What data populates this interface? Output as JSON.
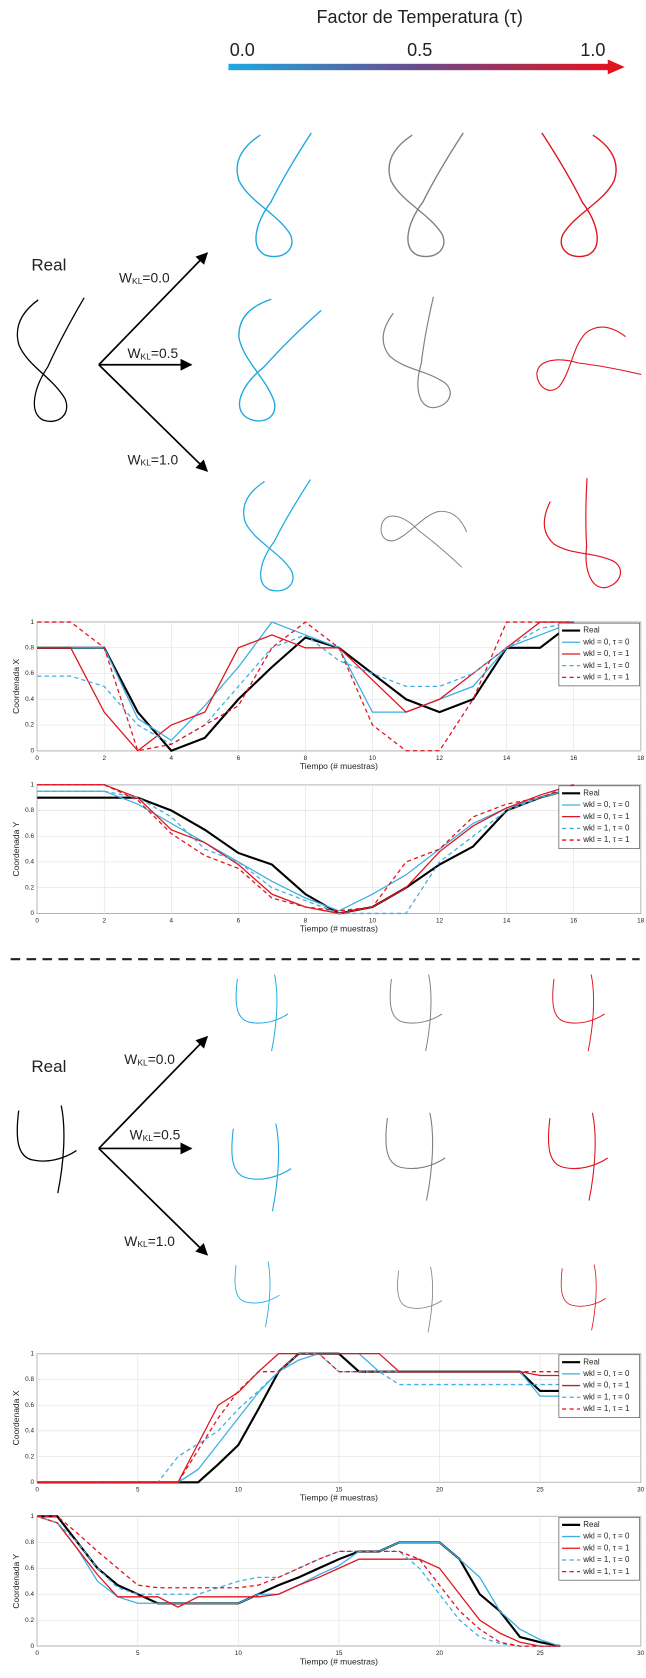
{
  "header": {
    "title": "Factor de Temperatura (τ)",
    "scale_labels": [
      "0.0",
      "0.5",
      "1.0"
    ]
  },
  "panels": [
    {
      "real_label": "Real",
      "weights": [
        {
          "symbol": "W",
          "subscript": "KL",
          "text": "=0.0"
        },
        {
          "symbol": "W",
          "subscript": "KL",
          "text": "=0.5"
        },
        {
          "symbol": "W",
          "subscript": "KL",
          "text": "=1.0"
        }
      ]
    },
    {
      "real_label": "Real",
      "weights": [
        {
          "symbol": "W",
          "subscript": "KL",
          "text": "=0.0"
        },
        {
          "symbol": "W",
          "subscript": "KL",
          "text": "=0.5"
        },
        {
          "symbol": "W",
          "subscript": "KL",
          "text": "=1.0"
        }
      ]
    }
  ],
  "chart_data": [
    {
      "type": "line",
      "xlabel": "Tiempo (# muestras)",
      "ylabel": "Coordenada X",
      "grid": true,
      "legend": "upper right",
      "xlim": [
        0,
        18
      ],
      "xticks": [
        0,
        2,
        4,
        6,
        8,
        10,
        12,
        14,
        16,
        18
      ],
      "ylim": [
        0,
        1
      ],
      "yticks": [
        0,
        0.2,
        0.4,
        0.6,
        0.8,
        1
      ],
      "x": [
        0,
        1,
        2,
        3,
        4,
        5,
        6,
        7,
        8,
        9,
        10,
        11,
        12,
        13,
        14,
        15,
        16
      ],
      "series": [
        {
          "name": "Real",
          "color": "#000000",
          "dashed": false,
          "linewidth": 2,
          "values": [
            0.8,
            0.8,
            0.8,
            0.3,
            0,
            0.1,
            0.4,
            0.65,
            0.88,
            0.8,
            0.6,
            0.4,
            0.3,
            0.4,
            0.8,
            0.8,
            1
          ]
        },
        {
          "name": "wkl = 0, τ = 0",
          "color": "#3fb0e0",
          "dashed": false,
          "linewidth": 1.2,
          "values": [
            0.8,
            0.8,
            0.8,
            0.25,
            0.08,
            0.35,
            0.65,
            1,
            0.9,
            0.8,
            0.3,
            0.3,
            0.4,
            0.5,
            0.8,
            0.9,
            1
          ]
        },
        {
          "name": "wkl = 0, τ = 1",
          "color": "#e0141e",
          "dashed": false,
          "linewidth": 1.2,
          "values": [
            0.8,
            0.8,
            0.3,
            0,
            0.2,
            0.3,
            0.8,
            0.9,
            0.8,
            0.8,
            0.55,
            0.3,
            0.4,
            0.6,
            0.8,
            1,
            1
          ]
        },
        {
          "name": "wkl = 1, τ = 0",
          "color": "#3fb0e0",
          "dashed": true,
          "linewidth": 1.2,
          "values": [
            0.58,
            0.58,
            0.5,
            0.2,
            0.05,
            0.2,
            0.5,
            0.8,
            0.9,
            0.7,
            0.6,
            0.5,
            0.5,
            0.6,
            0.8,
            0.95,
            1
          ]
        },
        {
          "name": "wkl = 1, τ = 1",
          "color": "#e0141e",
          "dashed": true,
          "linewidth": 1.2,
          "values": [
            1,
            1,
            0.8,
            0,
            0.05,
            0.2,
            0.35,
            0.8,
            1,
            0.8,
            0.2,
            0,
            0,
            0.4,
            1,
            1,
            1
          ]
        }
      ]
    },
    {
      "type": "line",
      "xlabel": "Tiempo (# muestras)",
      "ylabel": "Coordenada Y",
      "grid": true,
      "legend": "upper right",
      "xlim": [
        0,
        18
      ],
      "xticks": [
        0,
        2,
        4,
        6,
        8,
        10,
        12,
        14,
        16,
        18
      ],
      "ylim": [
        0,
        1
      ],
      "yticks": [
        0,
        0.2,
        0.4,
        0.6,
        0.8,
        1
      ],
      "x": [
        0,
        1,
        2,
        3,
        4,
        5,
        6,
        7,
        8,
        9,
        10,
        11,
        12,
        13,
        14,
        15,
        16
      ],
      "series": [
        {
          "name": "Real",
          "color": "#000000",
          "dashed": false,
          "linewidth": 2,
          "values": [
            0.9,
            0.9,
            0.9,
            0.9,
            0.8,
            0.65,
            0.47,
            0.38,
            0.15,
            0,
            0.05,
            0.2,
            0.38,
            0.52,
            0.8,
            0.9,
            0.97
          ]
        },
        {
          "name": "wkl = 0, τ = 0",
          "color": "#3fb0e0",
          "dashed": false,
          "linewidth": 1.2,
          "values": [
            0.95,
            0.95,
            0.95,
            0.85,
            0.7,
            0.55,
            0.4,
            0.25,
            0.12,
            0.02,
            0.15,
            0.3,
            0.5,
            0.7,
            0.82,
            0.9,
            0.97
          ]
        },
        {
          "name": "wkl = 0, τ = 1",
          "color": "#e0141e",
          "dashed": false,
          "linewidth": 1.2,
          "values": [
            1,
            1,
            1,
            0.9,
            0.65,
            0.55,
            0.38,
            0.15,
            0.05,
            0,
            0.05,
            0.2,
            0.48,
            0.68,
            0.82,
            0.92,
            1
          ]
        },
        {
          "name": "wkl = 1, τ = 0",
          "color": "#3fb0e0",
          "dashed": true,
          "linewidth": 1.2,
          "values": [
            0.95,
            0.95,
            0.95,
            0.9,
            0.75,
            0.5,
            0.4,
            0.2,
            0.1,
            0,
            0,
            0,
            0.4,
            0.6,
            0.8,
            0.9,
            0.97
          ]
        },
        {
          "name": "wkl = 1, τ = 1",
          "color": "#e0141e",
          "dashed": true,
          "linewidth": 1.2,
          "values": [
            1,
            1,
            1,
            0.88,
            0.62,
            0.45,
            0.35,
            0.12,
            0.05,
            0.02,
            0.05,
            0.4,
            0.5,
            0.75,
            0.85,
            0.9,
            1
          ]
        }
      ]
    },
    {
      "type": "line",
      "xlabel": "Tiempo (# muestras)",
      "ylabel": "Coordenada X",
      "grid": true,
      "legend": "upper right",
      "xlim": [
        0,
        30
      ],
      "xticks": [
        0,
        5,
        10,
        15,
        20,
        25,
        30
      ],
      "ylim": [
        0,
        1
      ],
      "yticks": [
        0,
        0.2,
        0.4,
        0.6,
        0.8,
        1
      ],
      "x": [
        0,
        1,
        2,
        3,
        4,
        5,
        6,
        7,
        8,
        9,
        10,
        11,
        12,
        13,
        14,
        15,
        16,
        17,
        18,
        19,
        20,
        21,
        22,
        23,
        24,
        25,
        26
      ],
      "series": [
        {
          "name": "Real",
          "color": "#000000",
          "dashed": false,
          "linewidth": 2,
          "values": [
            0,
            0,
            0,
            0,
            0,
            0,
            0,
            0,
            0,
            0.14,
            0.29,
            0.57,
            0.86,
            1,
            1,
            1,
            0.86,
            0.86,
            0.86,
            0.86,
            0.86,
            0.86,
            0.86,
            0.86,
            0.86,
            0.71,
            0.71
          ]
        },
        {
          "name": "wkl = 0, τ = 0",
          "color": "#3fb0e0",
          "dashed": false,
          "linewidth": 1.2,
          "values": [
            0,
            0,
            0,
            0,
            0,
            0,
            0,
            0,
            0.1,
            0.3,
            0.5,
            0.7,
            0.86,
            0.95,
            1,
            1,
            1,
            0.86,
            0.86,
            0.86,
            0.86,
            0.86,
            0.86,
            0.86,
            0.86,
            0.67,
            0.67
          ]
        },
        {
          "name": "wkl = 0, τ = 1",
          "color": "#e0141e",
          "dashed": false,
          "linewidth": 1.2,
          "values": [
            0,
            0,
            0,
            0,
            0,
            0,
            0,
            0,
            0.3,
            0.6,
            0.7,
            0.86,
            1,
            1,
            1,
            1,
            1,
            1,
            0.86,
            0.86,
            0.86,
            0.86,
            0.86,
            0.86,
            0.86,
            0.83,
            0.83
          ]
        },
        {
          "name": "wkl = 1, τ = 0",
          "color": "#3fb0e0",
          "dashed": true,
          "linewidth": 1.2,
          "values": [
            0,
            0,
            0,
            0,
            0,
            0,
            0,
            0.2,
            0.3,
            0.4,
            0.57,
            0.71,
            0.86,
            1,
            1,
            0.86,
            0.86,
            0.86,
            0.76,
            0.76,
            0.76,
            0.76,
            0.76,
            0.76,
            0.76,
            0.76,
            0.76
          ]
        },
        {
          "name": "wkl = 1, τ = 1",
          "color": "#e0141e",
          "dashed": true,
          "linewidth": 1.2,
          "values": [
            0,
            0,
            0,
            0,
            0,
            0,
            0,
            0,
            0.25,
            0.5,
            0.71,
            0.86,
            0.86,
            1,
            1,
            0.86,
            0.86,
            0.86,
            0.86,
            0.86,
            0.86,
            0.86,
            0.86,
            0.86,
            0.86,
            0.86,
            0.86
          ]
        }
      ]
    },
    {
      "type": "line",
      "xlabel": "Tiempo (# muestras)",
      "ylabel": "Coordenada Y",
      "grid": true,
      "legend": "upper right",
      "xlim": [
        0,
        30
      ],
      "xticks": [
        0,
        5,
        10,
        15,
        20,
        25,
        30
      ],
      "ylim": [
        0,
        1
      ],
      "yticks": [
        0,
        0.2,
        0.4,
        0.6,
        0.8,
        1
      ],
      "x": [
        0,
        1,
        2,
        3,
        4,
        5,
        6,
        7,
        8,
        9,
        10,
        11,
        12,
        13,
        14,
        15,
        16,
        17,
        18,
        19,
        20,
        21,
        22,
        23,
        24,
        25,
        26
      ],
      "series": [
        {
          "name": "Real",
          "color": "#000000",
          "dashed": false,
          "linewidth": 2,
          "values": [
            1,
            1,
            0.8,
            0.6,
            0.47,
            0.4,
            0.33,
            0.33,
            0.33,
            0.33,
            0.33,
            0.4,
            0.47,
            0.53,
            0.6,
            0.67,
            0.73,
            0.73,
            0.8,
            0.8,
            0.8,
            0.67,
            0.4,
            0.27,
            0.07,
            0.03,
            0
          ]
        },
        {
          "name": "wkl = 0, τ = 0",
          "color": "#3fb0e0",
          "dashed": false,
          "linewidth": 1.2,
          "values": [
            1,
            0.95,
            0.75,
            0.5,
            0.38,
            0.33,
            0.33,
            0.33,
            0.33,
            0.33,
            0.33,
            0.4,
            0.4,
            0.47,
            0.55,
            0.62,
            0.73,
            0.73,
            0.8,
            0.8,
            0.8,
            0.67,
            0.53,
            0.27,
            0.13,
            0.05,
            0
          ]
        },
        {
          "name": "wkl = 0, τ = 1",
          "color": "#e0141e",
          "dashed": false,
          "linewidth": 1.2,
          "values": [
            1,
            0.95,
            0.75,
            0.55,
            0.38,
            0.38,
            0.38,
            0.3,
            0.38,
            0.38,
            0.38,
            0.38,
            0.4,
            0.47,
            0.53,
            0.6,
            0.67,
            0.67,
            0.67,
            0.67,
            0.6,
            0.4,
            0.2,
            0.1,
            0.03,
            0,
            0
          ]
        },
        {
          "name": "wkl = 1, τ = 0",
          "color": "#3fb0e0",
          "dashed": true,
          "linewidth": 1.2,
          "values": [
            1,
            0.95,
            0.8,
            0.6,
            0.45,
            0.4,
            0.4,
            0.4,
            0.4,
            0.45,
            0.5,
            0.53,
            0.53,
            0.6,
            0.67,
            0.73,
            0.73,
            0.73,
            0.73,
            0.6,
            0.4,
            0.2,
            0.07,
            0.02,
            0,
            0,
            0
          ]
        },
        {
          "name": "wkl = 1, τ = 1",
          "color": "#e0141e",
          "dashed": true,
          "linewidth": 1.2,
          "values": [
            1,
            1,
            0.87,
            0.73,
            0.6,
            0.47,
            0.45,
            0.45,
            0.45,
            0.45,
            0.45,
            0.47,
            0.53,
            0.6,
            0.67,
            0.73,
            0.73,
            0.73,
            0.73,
            0.67,
            0.47,
            0.27,
            0.13,
            0.03,
            0,
            0,
            0
          ]
        }
      ]
    }
  ]
}
